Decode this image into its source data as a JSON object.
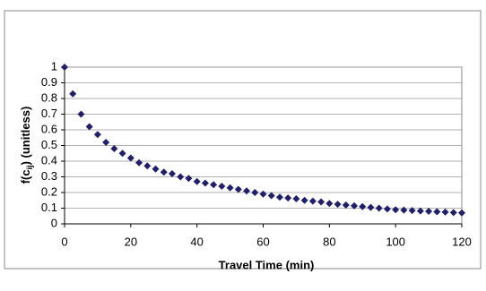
{
  "chart_data": {
    "type": "scatter",
    "ylabel": {
      "base": "f(c",
      "sub": "ij",
      "rest": ") (unitless)"
    },
    "xlabel": "Travel Time (min)",
    "series": [
      {
        "color": "#1f1f6b",
        "x": [
          0,
          2.5,
          5,
          7.5,
          10,
          12.5,
          15,
          17.5,
          20,
          22.5,
          25,
          27.5,
          30,
          32.5,
          35,
          37.5,
          40,
          42.5,
          45,
          47.5,
          50,
          52.5,
          55,
          57.5,
          60,
          62.5,
          65,
          67.5,
          70,
          72.5,
          75,
          77.5,
          80,
          82.5,
          85,
          87.5,
          90,
          92.5,
          95,
          97.5,
          100,
          102.5,
          105,
          107.5,
          110,
          112.5,
          115,
          117.5,
          120
        ],
        "values": [
          1.0,
          0.83,
          0.7,
          0.62,
          0.57,
          0.52,
          0.48,
          0.45,
          0.42,
          0.39,
          0.37,
          0.35,
          0.33,
          0.32,
          0.3,
          0.29,
          0.27,
          0.26,
          0.25,
          0.24,
          0.23,
          0.22,
          0.21,
          0.2,
          0.19,
          0.18,
          0.17,
          0.165,
          0.16,
          0.15,
          0.145,
          0.14,
          0.13,
          0.125,
          0.12,
          0.115,
          0.11,
          0.105,
          0.1,
          0.095,
          0.09,
          0.088,
          0.085,
          0.082,
          0.08,
          0.077,
          0.075,
          0.072,
          0.07
        ]
      }
    ],
    "xlim": [
      0,
      120
    ],
    "xticks": [
      0,
      20,
      40,
      60,
      80,
      100,
      120
    ],
    "ylim": [
      0,
      1
    ],
    "yticks": [
      0,
      0.1,
      0.2,
      0.3,
      0.4,
      0.5,
      0.6,
      0.7,
      0.8,
      0.9,
      1
    ],
    "grid": true
  }
}
